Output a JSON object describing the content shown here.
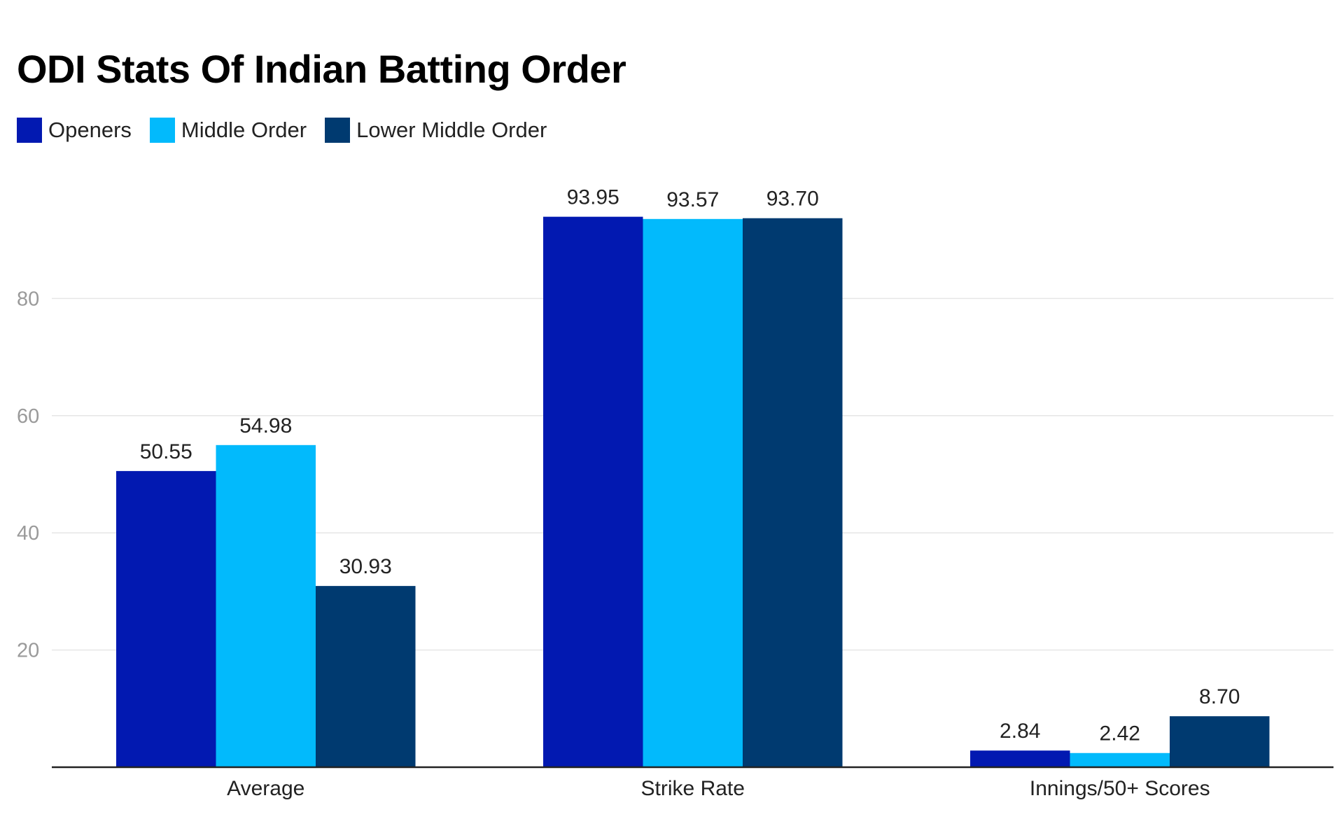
{
  "chart_data": {
    "type": "bar",
    "title": "ODI Stats Of Indian Batting Order",
    "xlabel": "",
    "ylabel": "",
    "categories": [
      "Average",
      "Strike Rate",
      "Innings/50+ Scores"
    ],
    "series": [
      {
        "name": "Openers",
        "color": "#0219B1",
        "values": [
          50.55,
          93.95,
          2.84
        ],
        "labels": [
          "50.55",
          "93.95",
          "2.84"
        ]
      },
      {
        "name": "Middle Order",
        "color": "#02BAFC",
        "values": [
          54.98,
          93.57,
          2.42
        ],
        "labels": [
          "54.98",
          "93.57",
          "2.42"
        ]
      },
      {
        "name": "Lower Middle Order",
        "color": "#003A70",
        "values": [
          30.93,
          93.7,
          8.7
        ],
        "labels": [
          "30.93",
          "93.70",
          "8.70"
        ]
      }
    ],
    "yticks": [
      20,
      40,
      60,
      80
    ],
    "ylim": [
      0,
      100
    ],
    "grid": true,
    "legend_position": "top-left",
    "colors": {
      "gridline": "#e6e6e6",
      "baseline": "#222222",
      "tick_text": "#9a9a9a"
    }
  }
}
